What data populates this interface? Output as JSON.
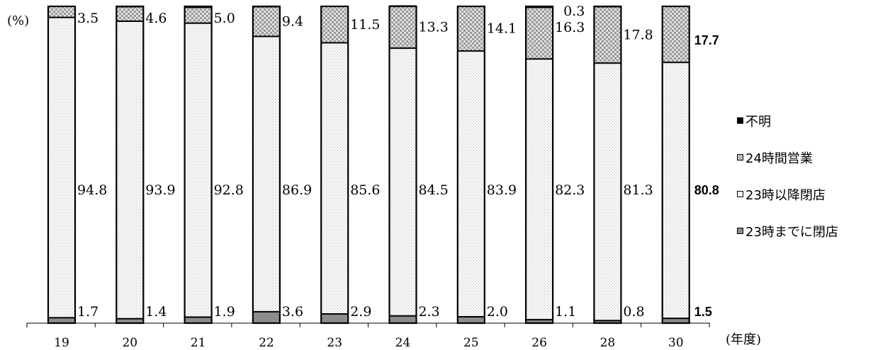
{
  "unit_label": "(%)",
  "x_unit_label": "(年度)",
  "legend": [
    {
      "label": "不明",
      "color": "#000000",
      "pattern": "solid"
    },
    {
      "label": "24時間営業",
      "color": "#c8c8c8",
      "pattern": "checker"
    },
    {
      "label": "23時以降閉店",
      "color": "#f4f4f4",
      "pattern": "dots"
    },
    {
      "label": "23時までに閉店",
      "color": "#8c8c8c",
      "pattern": "solid-gray"
    }
  ],
  "chart_data": {
    "type": "bar",
    "stacked": true,
    "categories": [
      "19",
      "20",
      "21",
      "22",
      "23",
      "24",
      "25",
      "26",
      "28",
      "30"
    ],
    "ylim": [
      0,
      100
    ],
    "series": [
      {
        "name": "23時までに閉店",
        "values": [
          1.7,
          1.4,
          1.9,
          3.6,
          2.9,
          2.3,
          2.0,
          1.1,
          0.8,
          1.5
        ],
        "labels": [
          "1.7",
          "1.4",
          "1.9",
          "3.6",
          "2.9",
          "2.3",
          "2.0",
          "1.1",
          "0.8",
          "1.5"
        ]
      },
      {
        "name": "23時以降閉店",
        "values": [
          94.8,
          93.9,
          92.8,
          86.9,
          85.6,
          84.5,
          83.9,
          82.3,
          81.3,
          80.8
        ],
        "labels": [
          "94.8",
          "93.9",
          "92.8",
          "86.9",
          "85.6",
          "84.5",
          "83.9",
          "82.3",
          "81.3",
          "80.8"
        ]
      },
      {
        "name": "24時間営業",
        "values": [
          3.5,
          4.6,
          5.0,
          9.4,
          11.5,
          13.3,
          14.1,
          16.3,
          17.8,
          17.7
        ],
        "labels": [
          "3.5",
          "4.6",
          "5.0",
          "9.4",
          "11.5",
          "13.3",
          "14.1",
          "16.3",
          "17.8",
          "17.7"
        ]
      },
      {
        "name": "不明",
        "values": [
          0,
          0,
          0,
          0,
          0,
          0,
          0,
          0.3,
          0,
          0
        ],
        "labels": [
          "",
          "",
          "",
          "",
          "",
          "",
          "",
          "0.3",
          "",
          ""
        ]
      }
    ]
  }
}
